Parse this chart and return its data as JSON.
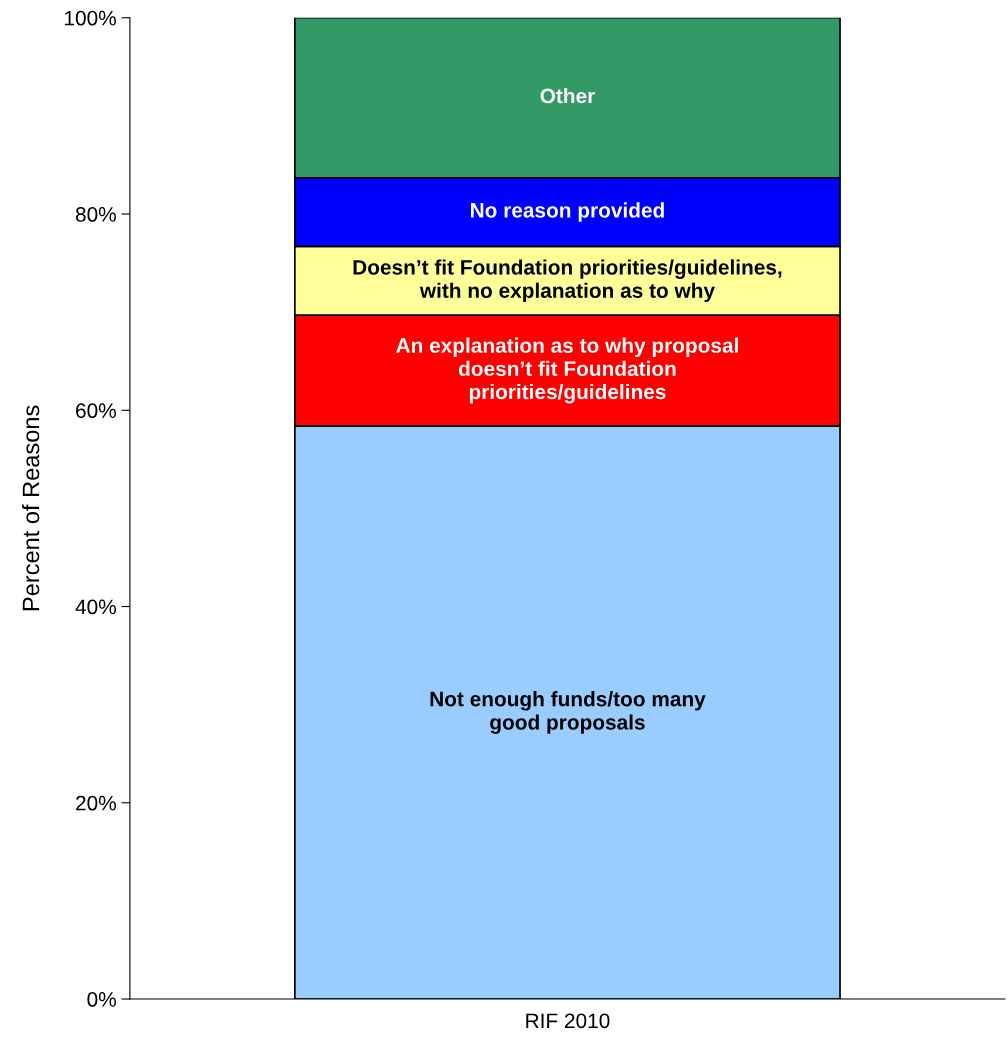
{
  "chart_data": {
    "type": "bar",
    "stacked": true,
    "ylabel": "Percent of Reasons",
    "categories": [
      "RIF 2010"
    ],
    "series": [
      {
        "name": "Not enough funds/too many\ngood proposals",
        "color": "#99ccff",
        "values": [
          58.4
        ]
      },
      {
        "name": "An explanation as to why proposal\ndoesn’t fit Foundation\npriorities/guidelines",
        "color": "#ff0000",
        "values": [
          11.3
        ]
      },
      {
        "name": "Doesn’t fit Foundation priorities/guidelines,\nwith no explanation as to why",
        "color": "#ffff99",
        "values": [
          7.0
        ]
      },
      {
        "name": "No reason provided",
        "color": "#0000ff",
        "values": [
          7.0
        ]
      },
      {
        "name": "Other",
        "color": "#339966",
        "values": [
          16.3
        ]
      }
    ],
    "ylim": [
      0,
      100
    ],
    "yticks": [
      {
        "value": 0,
        "label": "0%"
      },
      {
        "value": 20,
        "label": "20%"
      },
      {
        "value": 40,
        "label": "40%"
      },
      {
        "value": 60,
        "label": "60%"
      },
      {
        "value": 80,
        "label": "80%"
      },
      {
        "value": 100,
        "label": "100%"
      }
    ],
    "grid": false,
    "legend": false
  }
}
